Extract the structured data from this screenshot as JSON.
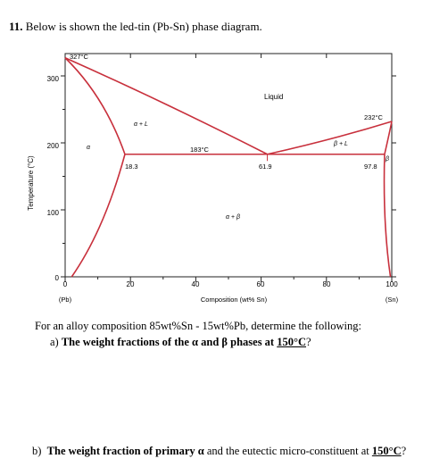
{
  "question": {
    "number": "11.",
    "title_text": "Below is shown the led-tin (Pb-Sn) phase diagram.",
    "intro": "For an alloy composition 85wt%Sn - 15wt%Pb, determine the following:",
    "part_a": {
      "label": "a)",
      "text_before": "The weight fractions of the",
      "alpha": "α",
      "and": "and",
      "beta": "β",
      "phases_at": "phases at",
      "temperature": "150°C",
      "end": "?"
    },
    "part_b": {
      "label": "b)",
      "text_before": "The weight fraction of primary",
      "alpha": "α",
      "middle": "and the eutectic micro-constituent at",
      "temperature": "150°C",
      "end": "?"
    }
  },
  "diagram": {
    "y_axis_label": "Temperature (°C)",
    "x_axis_label": "Composition (wt% Sn)",
    "x_left_label": "(Pb)",
    "x_right_label": "(Sn)",
    "x_ticks": [
      "0",
      "20",
      "40",
      "60",
      "80",
      "100"
    ],
    "y_ticks": [
      "0",
      "100",
      "200",
      "300"
    ],
    "annotations": {
      "pb_melting": "327°C",
      "sn_melting": "232°C",
      "eutectic_temp": "183°C",
      "alpha_limit": "18.3",
      "eutectic_comp": "61.9",
      "beta_limit": "97.8"
    },
    "regions": {
      "liquid": "Liquid",
      "alpha_liquid": "α + L",
      "beta_liquid": "β + L",
      "alpha": "α",
      "beta": "β",
      "alpha_beta": "α + β"
    },
    "line_color": "#c8303c",
    "axis_color": "#222222"
  }
}
